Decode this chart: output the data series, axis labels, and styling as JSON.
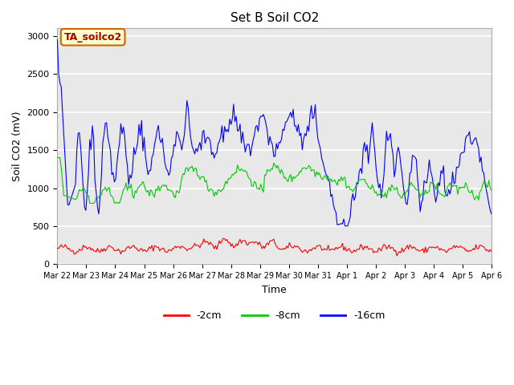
{
  "title": "Set B Soil CO2",
  "xlabel": "Time",
  "ylabel": "Soil CO2 (mV)",
  "ylim": [
    0,
    3100
  ],
  "yticks": [
    0,
    500,
    1000,
    1500,
    2000,
    2500,
    3000
  ],
  "bg_color": "#e8e8e8",
  "legend_label": "TA_soilco2",
  "legend_box_color": "#ffffcc",
  "legend_box_edge_color": "#cc6600",
  "line_colors": {
    "2cm": "#ff0000",
    "8cm": "#00cc00",
    "16cm": "#0000ff"
  },
  "legend_items": [
    "-2cm",
    "-8cm",
    "-16cm"
  ],
  "xtick_labels": [
    "Mar 22",
    "Mar 23",
    "Mar 24",
    "Mar 25",
    "Mar 26",
    "Mar 27",
    "Mar 28",
    "Mar 29",
    "Mar 30",
    "Mar 31",
    "Apr 1",
    "Apr 2",
    "Apr 3",
    "Apr 4",
    "Apr 5",
    "Apr 6"
  ],
  "n_points": 336,
  "figsize": [
    6.4,
    4.8
  ],
  "dpi": 100
}
